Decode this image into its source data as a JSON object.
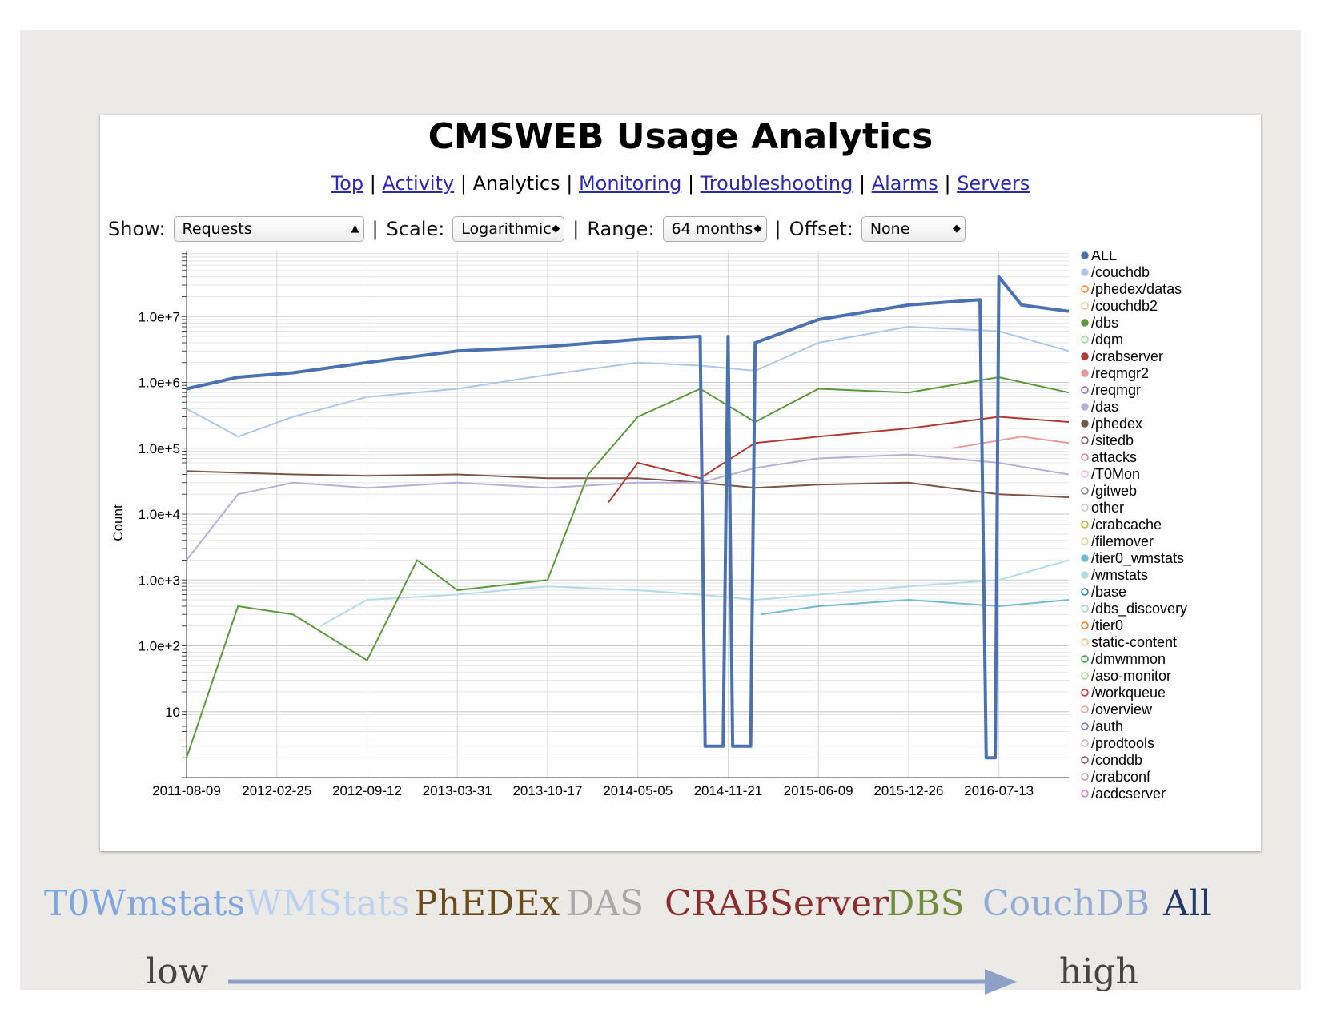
{
  "title": "CMSWEB Usage Analytics",
  "nav": [
    {
      "label": "Top",
      "link": true
    },
    {
      "label": "Activity",
      "link": true
    },
    {
      "label": "Analytics",
      "link": false
    },
    {
      "label": "Monitoring",
      "link": true
    },
    {
      "label": "Troubleshooting",
      "link": true
    },
    {
      "label": "Alarms",
      "link": true
    },
    {
      "label": "Servers",
      "link": true
    }
  ],
  "controls": {
    "show_label": "Show:",
    "show_value": "Requests",
    "scale_label": "Scale:",
    "scale_value": "Logarithmic",
    "range_label": "Range:",
    "range_value": "64 months",
    "offset_label": "Offset:",
    "offset_value": "None",
    "separator": "|"
  },
  "chart_data": {
    "type": "line",
    "ylabel": "Count",
    "yscale": "log",
    "ylim": [
      1,
      100000000
    ],
    "yticks": [
      {
        "value": 10,
        "label": "10"
      },
      {
        "value": 100,
        "label": "1.0e+2"
      },
      {
        "value": 1000,
        "label": "1.0e+3"
      },
      {
        "value": 10000,
        "label": "1.0e+4"
      },
      {
        "value": 100000,
        "label": "1.0e+5"
      },
      {
        "value": 1000000,
        "label": "1.0e+6"
      },
      {
        "value": 10000000,
        "label": "1.0e+7"
      }
    ],
    "xticks": [
      "2011-08-09",
      "2012-02-25",
      "2012-09-12",
      "2013-03-31",
      "2013-10-17",
      "2014-05-05",
      "2014-11-21",
      "2015-06-09",
      "2015-12-26",
      "2016-07-13"
    ],
    "xlim": [
      "2011-08-09",
      "2016-12-15"
    ],
    "grid": true,
    "legend_position": "right",
    "legend": [
      {
        "name": "ALL",
        "color": "#4a72b0",
        "filled": true
      },
      {
        "name": "/couchdb",
        "color": "#aec7e8",
        "filled": true
      },
      {
        "name": "/phedex/datas",
        "color": "#ff7f0e",
        "filled": false
      },
      {
        "name": "/couchdb2",
        "color": "#ffbb78",
        "filled": false
      },
      {
        "name": "/dbs",
        "color": "#5a9a3a",
        "filled": true
      },
      {
        "name": "/dqm",
        "color": "#98df8a",
        "filled": false
      },
      {
        "name": "/crabserver",
        "color": "#b03a32",
        "filled": true
      },
      {
        "name": "/reqmgr2",
        "color": "#e79a9a",
        "filled": true
      },
      {
        "name": "/reqmgr",
        "color": "#9467bd",
        "filled": false
      },
      {
        "name": "/das",
        "color": "#b8aed6",
        "filled": true
      },
      {
        "name": "/phedex",
        "color": "#7a5548",
        "filled": true
      },
      {
        "name": "/sitedb",
        "color": "#8c564b",
        "filled": false
      },
      {
        "name": "attacks",
        "color": "#e377c2",
        "filled": false
      },
      {
        "name": "/T0Mon",
        "color": "#f7b6d2",
        "filled": false
      },
      {
        "name": "/gitweb",
        "color": "#7f7f7f",
        "filled": false
      },
      {
        "name": "other",
        "color": "#c7c7c7",
        "filled": false
      },
      {
        "name": "/crabcache",
        "color": "#bcbd22",
        "filled": false
      },
      {
        "name": "/filemover",
        "color": "#dbdb8d",
        "filled": false
      },
      {
        "name": "/tier0_wmstats",
        "color": "#6fbcd0",
        "filled": true
      },
      {
        "name": "/wmstats",
        "color": "#b3dbe6",
        "filled": true
      },
      {
        "name": "/base",
        "color": "#1f77b4",
        "filled": false
      },
      {
        "name": "/dbs_discovery",
        "color": "#aec7e8",
        "filled": false
      },
      {
        "name": "/tier0",
        "color": "#ff7f0e",
        "filled": false
      },
      {
        "name": "static-content",
        "color": "#ffbb78",
        "filled": false
      },
      {
        "name": "/dmwmmon",
        "color": "#2ca02c",
        "filled": false
      },
      {
        "name": "/aso-monitor",
        "color": "#98df8a",
        "filled": false
      },
      {
        "name": "/workqueue",
        "color": "#d62728",
        "filled": false
      },
      {
        "name": "/overview",
        "color": "#ff9896",
        "filled": false
      },
      {
        "name": "/auth",
        "color": "#9467bd",
        "filled": false
      },
      {
        "name": "/prodtools",
        "color": "#c5b0d5",
        "filled": false
      },
      {
        "name": "/conddb",
        "color": "#8c564b",
        "filled": false
      },
      {
        "name": "/crabconf",
        "color": "#c49c94",
        "filled": false
      },
      {
        "name": "/acdcserver",
        "color": "#e377c2",
        "filled": false
      }
    ],
    "series": [
      {
        "name": "ALL",
        "color": "#4a72b0",
        "width": 4,
        "points": [
          [
            "2011-08-09",
            800000
          ],
          [
            "2011-12-01",
            1200000
          ],
          [
            "2012-04-01",
            1400000
          ],
          [
            "2012-09-12",
            2000000
          ],
          [
            "2013-03-31",
            3000000
          ],
          [
            "2013-10-17",
            3500000
          ],
          [
            "2014-05-05",
            4500000
          ],
          [
            "2014-09-20",
            5000000
          ],
          [
            "2014-10-01",
            3
          ],
          [
            "2014-11-10",
            3
          ],
          [
            "2014-11-21",
            5000000
          ],
          [
            "2014-12-01",
            3
          ],
          [
            "2015-01-10",
            3
          ],
          [
            "2015-01-20",
            4000000
          ],
          [
            "2015-06-09",
            9000000
          ],
          [
            "2015-12-26",
            15000000
          ],
          [
            "2016-06-01",
            18000000
          ],
          [
            "2016-06-15",
            2
          ],
          [
            "2016-07-05",
            2
          ],
          [
            "2016-07-13",
            40000000
          ],
          [
            "2016-09-01",
            15000000
          ],
          [
            "2016-12-15",
            12000000
          ]
        ]
      },
      {
        "name": "/couchdb",
        "color": "#aec7e8",
        "width": 2,
        "points": [
          [
            "2011-08-09",
            400000
          ],
          [
            "2011-12-01",
            150000
          ],
          [
            "2012-04-01",
            300000
          ],
          [
            "2012-09-12",
            600000
          ],
          [
            "2013-03-31",
            800000
          ],
          [
            "2013-10-17",
            1300000
          ],
          [
            "2014-05-05",
            2000000
          ],
          [
            "2014-09-20",
            1800000
          ],
          [
            "2015-01-20",
            1500000
          ],
          [
            "2015-06-09",
            4000000
          ],
          [
            "2015-12-26",
            7000000
          ],
          [
            "2016-07-13",
            6000000
          ],
          [
            "2016-12-15",
            3000000
          ]
        ]
      },
      {
        "name": "/dbs",
        "color": "#5a9a3a",
        "width": 2,
        "points": [
          [
            "2011-08-09",
            2
          ],
          [
            "2011-12-01",
            400
          ],
          [
            "2012-04-01",
            300
          ],
          [
            "2012-09-12",
            60
          ],
          [
            "2013-01-01",
            2000
          ],
          [
            "2013-03-31",
            700
          ],
          [
            "2013-10-17",
            1000
          ],
          [
            "2014-01-15",
            40000
          ],
          [
            "2014-05-05",
            300000
          ],
          [
            "2014-09-20",
            800000
          ],
          [
            "2015-01-20",
            250000
          ],
          [
            "2015-06-09",
            800000
          ],
          [
            "2015-12-26",
            700000
          ],
          [
            "2016-07-13",
            1200000
          ],
          [
            "2016-12-15",
            700000
          ]
        ]
      },
      {
        "name": "/crabserver",
        "color": "#b03a32",
        "width": 2,
        "points": [
          [
            "2014-03-01",
            15000
          ],
          [
            "2014-05-05",
            60000
          ],
          [
            "2014-09-20",
            35000
          ],
          [
            "2015-01-20",
            120000
          ],
          [
            "2015-06-09",
            150000
          ],
          [
            "2015-12-26",
            200000
          ],
          [
            "2016-07-13",
            300000
          ],
          [
            "2016-12-15",
            250000
          ]
        ]
      },
      {
        "name": "/das",
        "color": "#b8aed6",
        "width": 2,
        "points": [
          [
            "2011-08-09",
            2000
          ],
          [
            "2011-12-01",
            20000
          ],
          [
            "2012-04-01",
            30000
          ],
          [
            "2012-09-12",
            25000
          ],
          [
            "2013-03-31",
            30000
          ],
          [
            "2013-10-17",
            25000
          ],
          [
            "2014-05-05",
            30000
          ],
          [
            "2014-09-20",
            30000
          ],
          [
            "2015-01-20",
            50000
          ],
          [
            "2015-06-09",
            70000
          ],
          [
            "2015-12-26",
            80000
          ],
          [
            "2016-07-13",
            60000
          ],
          [
            "2016-12-15",
            40000
          ]
        ]
      },
      {
        "name": "/phedex",
        "color": "#7a5548",
        "width": 2,
        "points": [
          [
            "2011-08-09",
            45000
          ],
          [
            "2012-04-01",
            40000
          ],
          [
            "2012-09-12",
            38000
          ],
          [
            "2013-03-31",
            40000
          ],
          [
            "2013-10-17",
            35000
          ],
          [
            "2014-05-05",
            35000
          ],
          [
            "2014-09-20",
            30000
          ],
          [
            "2015-01-20",
            25000
          ],
          [
            "2015-06-09",
            28000
          ],
          [
            "2015-12-26",
            30000
          ],
          [
            "2016-07-13",
            20000
          ],
          [
            "2016-12-15",
            18000
          ]
        ]
      },
      {
        "name": "/wmstats",
        "color": "#b3dbe6",
        "width": 2,
        "points": [
          [
            "2012-06-01",
            200
          ],
          [
            "2012-09-12",
            500
          ],
          [
            "2013-03-31",
            600
          ],
          [
            "2013-10-17",
            800
          ],
          [
            "2014-05-05",
            700
          ],
          [
            "2014-09-20",
            600
          ],
          [
            "2015-01-20",
            500
          ],
          [
            "2015-06-09",
            600
          ],
          [
            "2015-12-26",
            800
          ],
          [
            "2016-07-13",
            1000
          ],
          [
            "2016-12-15",
            2000
          ]
        ]
      },
      {
        "name": "/tier0_wmstats",
        "color": "#6fbcd0",
        "width": 2,
        "points": [
          [
            "2015-02-01",
            300
          ],
          [
            "2015-06-09",
            400
          ],
          [
            "2015-12-26",
            500
          ],
          [
            "2016-07-13",
            400
          ],
          [
            "2016-12-15",
            500
          ]
        ]
      },
      {
        "name": "/reqmgr2",
        "color": "#e79a9a",
        "width": 2,
        "points": [
          [
            "2016-04-01",
            100000
          ],
          [
            "2016-09-01",
            150000
          ],
          [
            "2016-12-15",
            120000
          ]
        ]
      }
    ]
  },
  "bottom_labels": [
    {
      "text": "T0Wmstats",
      "color": "#7ea6e0"
    },
    {
      "text": "WMStats",
      "color": "#bcd2f0"
    },
    {
      "text": "PhEDEx",
      "color": "#6b4a1c"
    },
    {
      "text": "DAS",
      "color": "#a9a9a9"
    },
    {
      "text": "CRABServer",
      "color": "#8b2c2c"
    },
    {
      "text": "DBS",
      "color": "#6f8d3c"
    },
    {
      "text": "CouchDB",
      "color": "#92acd6"
    },
    {
      "text": "All",
      "color": "#23386b"
    }
  ],
  "scale": {
    "low": "low",
    "high": "high",
    "arrow_color": "#8da0c6"
  }
}
